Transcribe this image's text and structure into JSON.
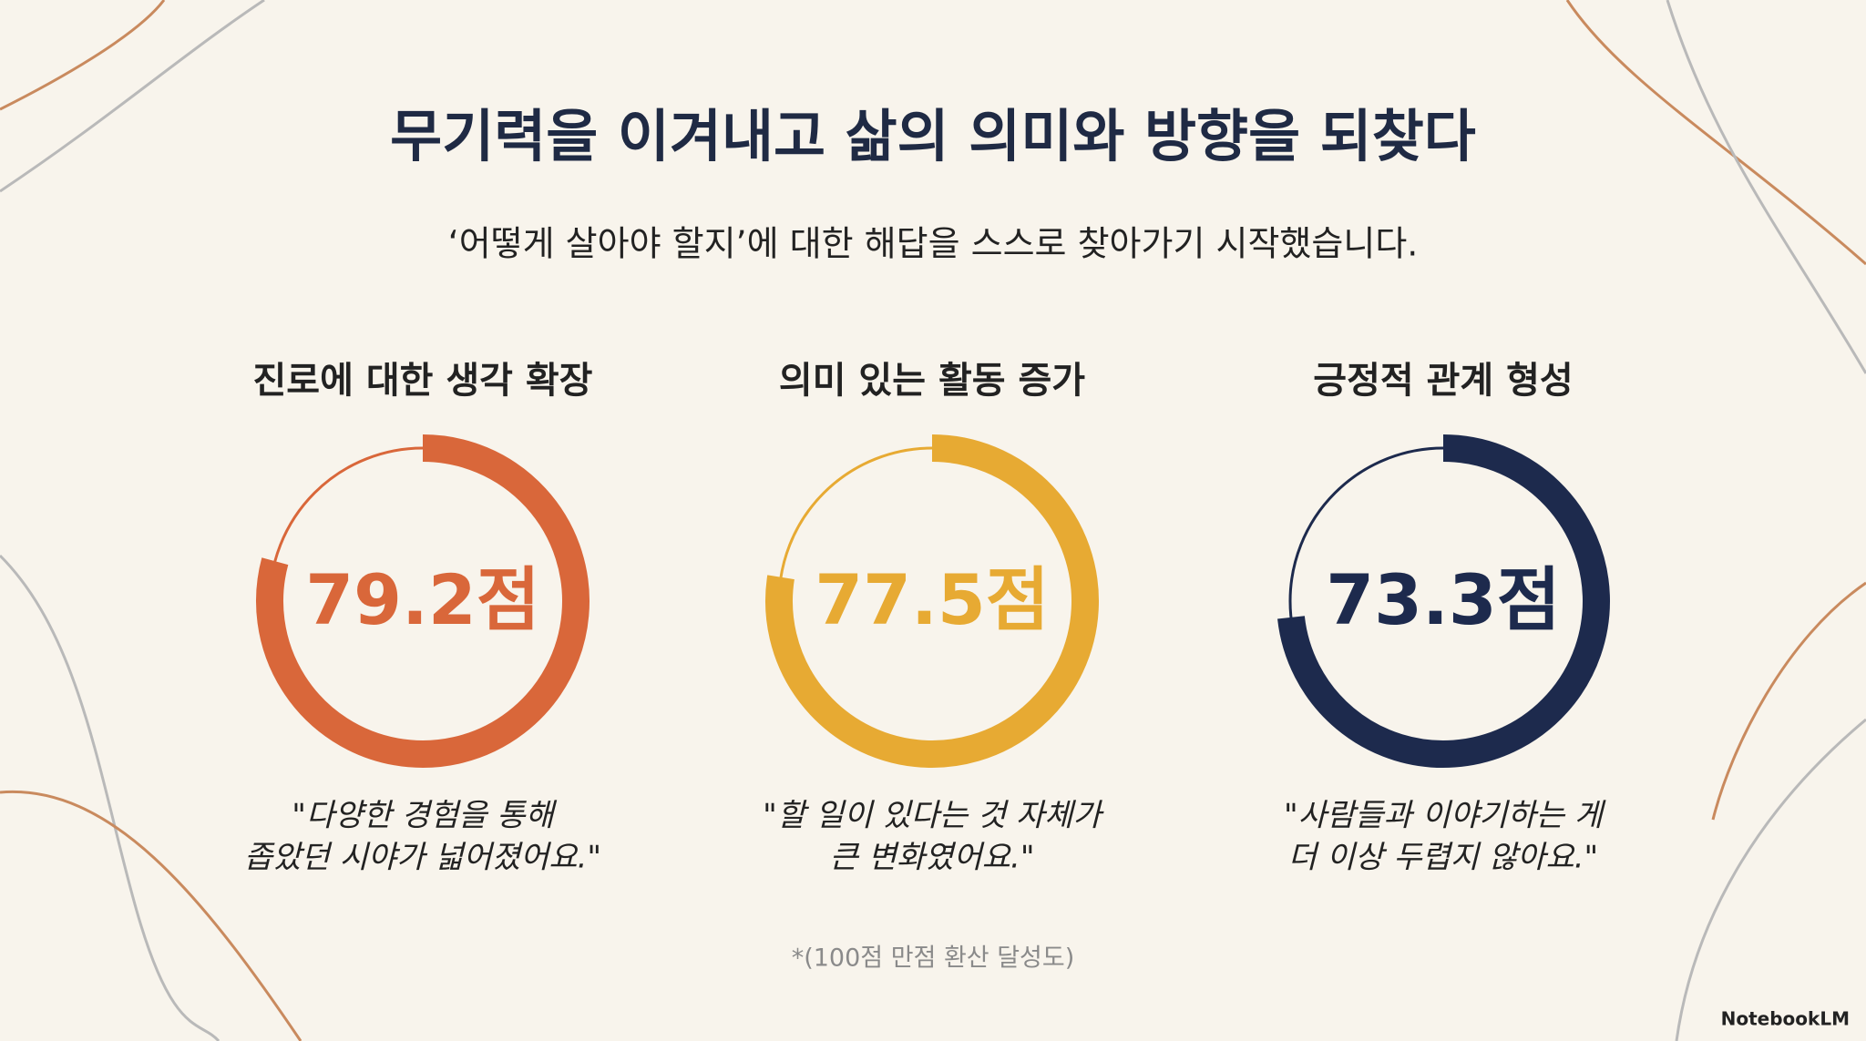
{
  "title": "무기력을 이겨내고 삶의 의미와 방향을 되찾다",
  "subtitle": "‘어떻게 살아야 할지’에 대한 해답을 스스로 찾아가기 시작했습니다.",
  "chart_data": [
    {
      "type": "gauge",
      "title": "진로에 대한 생각 확장",
      "values": [
        79.2
      ],
      "value_labels": [
        "79.2점"
      ],
      "ylim": [
        0,
        100
      ],
      "color": "#d9673a",
      "quote": [
        "\"다양한 경험을 통해",
        "좁았던 시야가 넓어졌어요.\""
      ]
    },
    {
      "type": "gauge",
      "title": "의미 있는 활동 증가",
      "values": [
        77.5
      ],
      "value_labels": [
        "77.5점"
      ],
      "ylim": [
        0,
        100
      ],
      "color": "#e7aa33",
      "quote": [
        "\"할 일이 있다는 것 자체가",
        "큰 변화였어요.\""
      ]
    },
    {
      "type": "gauge",
      "title": "긍정적 관계 형성",
      "values": [
        73.3
      ],
      "value_labels": [
        "73.3점"
      ],
      "ylim": [
        0,
        100
      ],
      "color": "#1d2a4d",
      "quote": [
        "\"사람들과 이야기하는 게",
        "더 이상 두렵지 않아요.\""
      ]
    }
  ],
  "footnote": "*(100점 만점 환산 달성도)",
  "brand": "NotebookLM"
}
